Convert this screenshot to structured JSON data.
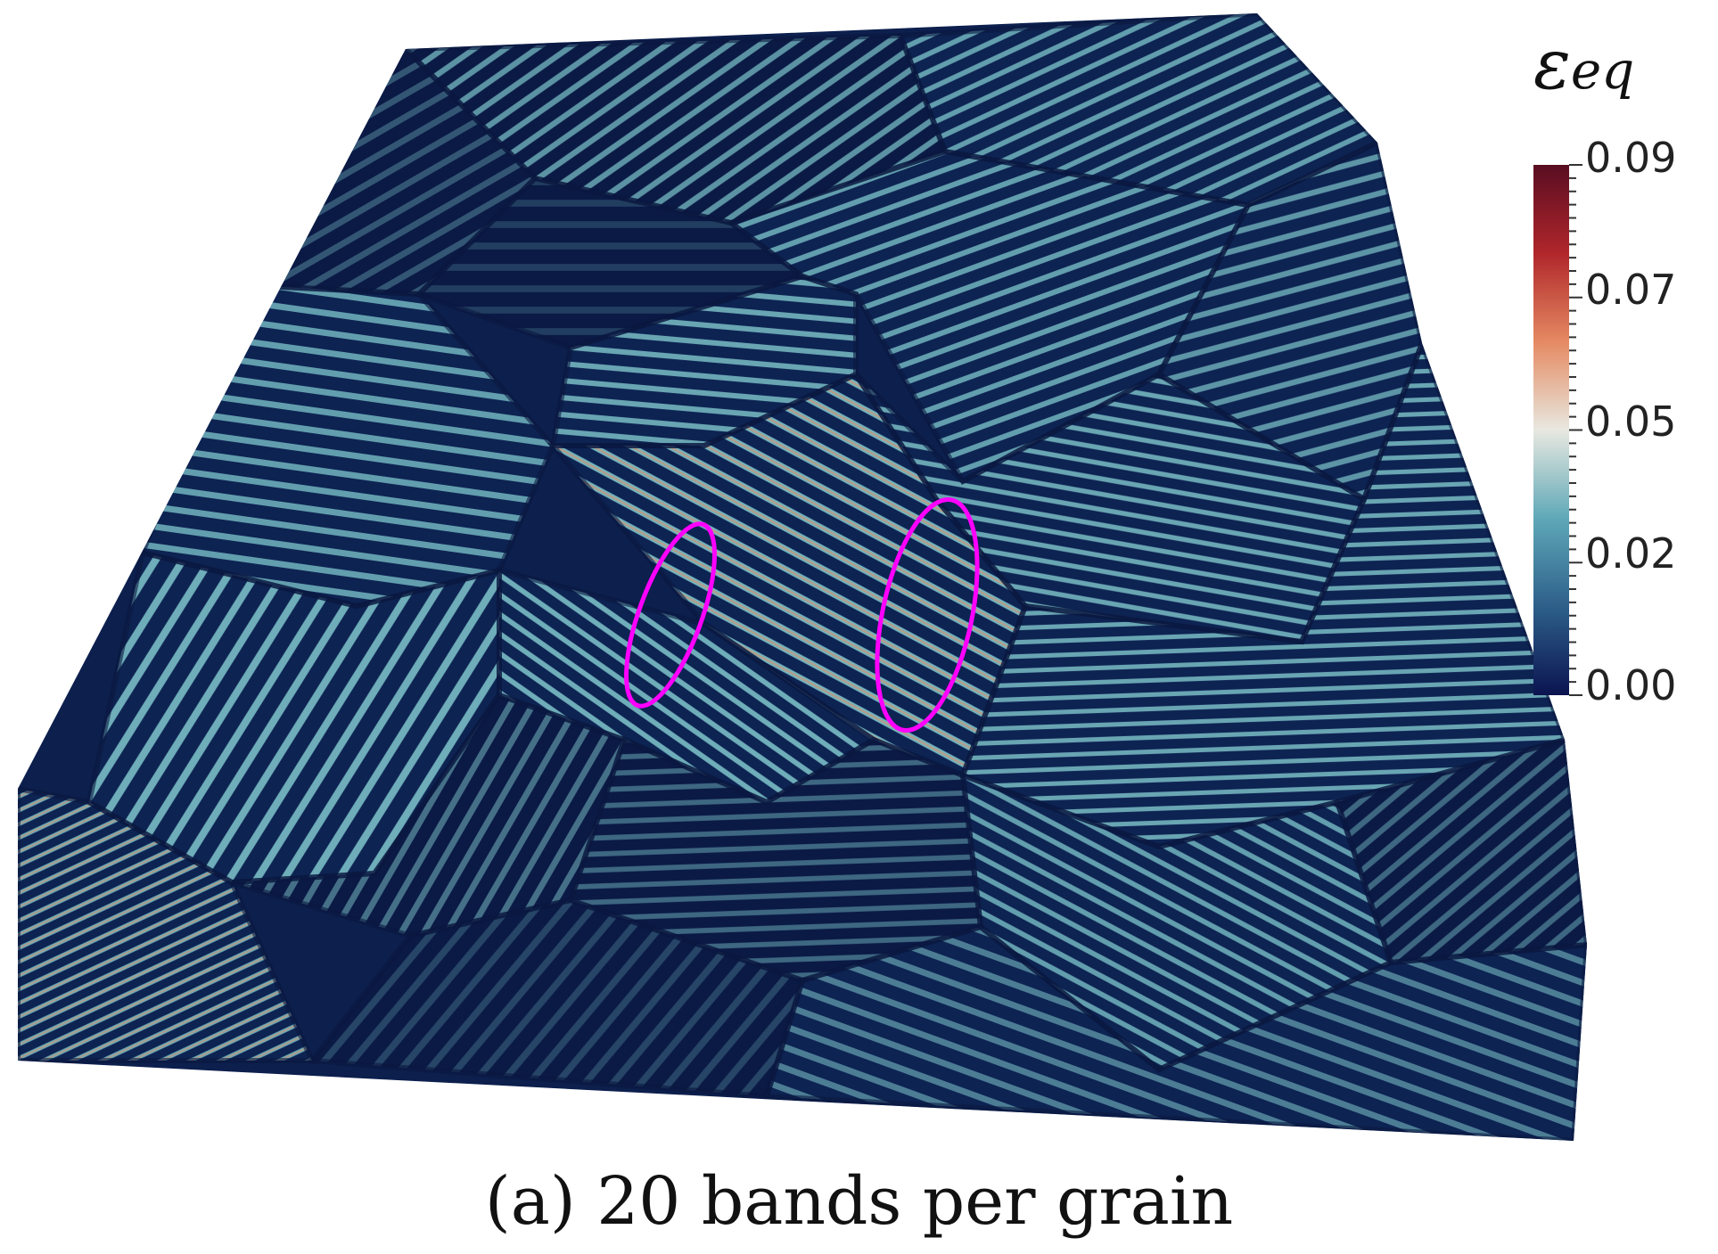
{
  "caption": "(a) 20 bands per grain",
  "colorbar": {
    "symbol": "ε",
    "subscript": "eq",
    "ticks": [
      "0.09",
      "0.07",
      "0.05",
      "0.02",
      "0.00"
    ],
    "stops": [
      "#0b1450",
      "#2d5f8a",
      "#5fa8b8",
      "#e8e8e0",
      "#e58a62",
      "#b0262b",
      "#5a0d22"
    ]
  },
  "highlight_color": "#ff00ff",
  "stripe_color": "#7fc6cc",
  "hot_color": "#e8885a",
  "background_color": "#0c1f4d"
}
